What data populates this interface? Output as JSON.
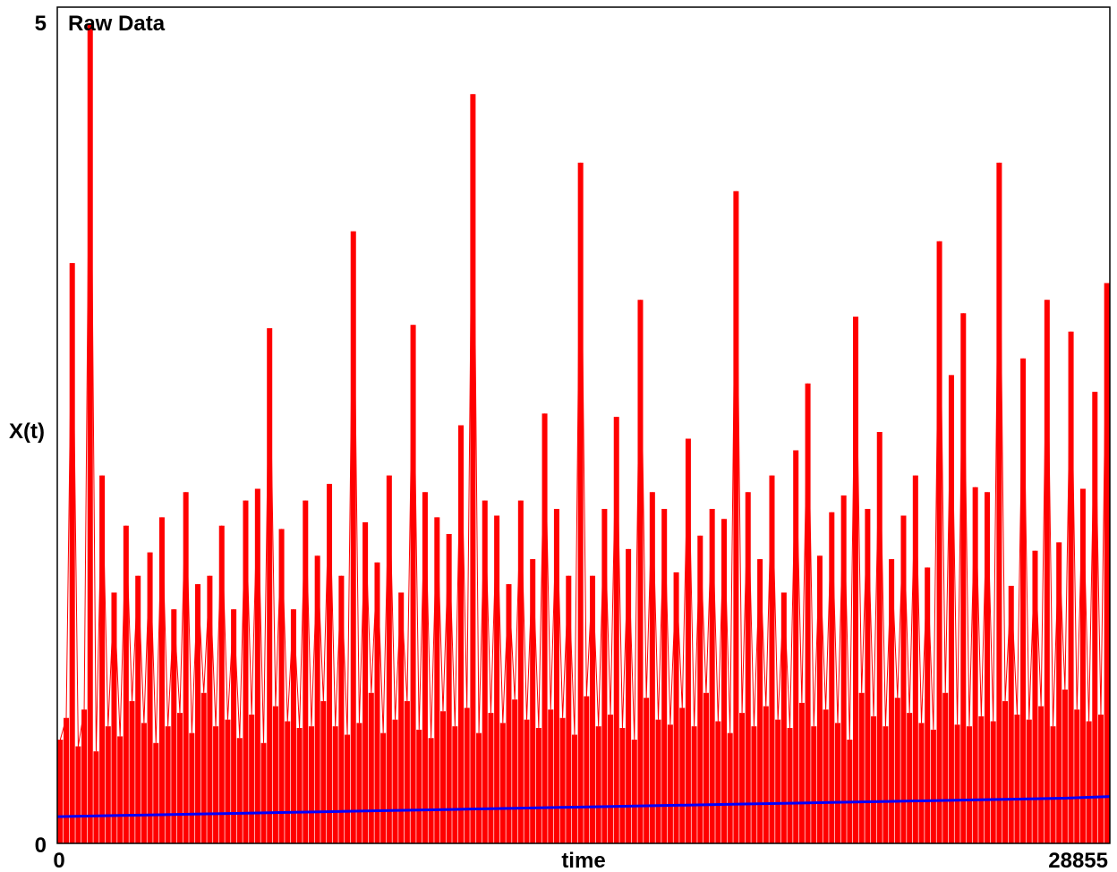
{
  "chart_data": {
    "type": "line",
    "title": "Raw Data",
    "xlabel": "time",
    "ylabel": "X(t)",
    "xlim": [
      0,
      28855
    ],
    "ylim": [
      0,
      5
    ],
    "x_tick_labels": [
      "0",
      "28855"
    ],
    "y_tick_labels": [
      "0",
      "5"
    ],
    "grid": false,
    "legend": "none",
    "colors": {
      "raw": "#ff0000",
      "trend": "#0000ff"
    },
    "series": [
      {
        "values": [
          0.62,
          0.75,
          3.47,
          0.58,
          0.8,
          4.9,
          0.55,
          2.2,
          0.7,
          1.5,
          0.64,
          1.9,
          0.85,
          1.6,
          0.72,
          1.74,
          0.6,
          1.95,
          0.7,
          1.4,
          0.78,
          2.1,
          0.66,
          1.55,
          0.9,
          1.6,
          0.7,
          1.9,
          0.74,
          1.4,
          0.63,
          2.05,
          0.77,
          2.12,
          0.6,
          3.08,
          0.82,
          1.88,
          0.73,
          1.4,
          0.69,
          2.05,
          0.7,
          1.72,
          0.85,
          2.15,
          0.7,
          1.6,
          0.65,
          3.66,
          0.72,
          1.92,
          0.9,
          1.68,
          0.66,
          2.2,
          0.74,
          1.5,
          0.85,
          3.1,
          0.68,
          2.1,
          0.63,
          1.95,
          0.79,
          1.85,
          0.7,
          2.5,
          0.81,
          4.48,
          0.66,
          2.05,
          0.78,
          1.96,
          0.72,
          1.55,
          0.86,
          2.05,
          0.74,
          1.7,
          0.69,
          2.57,
          0.8,
          2.0,
          0.75,
          1.6,
          0.65,
          4.07,
          0.88,
          1.6,
          0.7,
          2.0,
          0.77,
          2.55,
          0.69,
          1.76,
          0.62,
          3.25,
          0.87,
          2.1,
          0.74,
          2.0,
          0.71,
          1.62,
          0.81,
          2.42,
          0.7,
          1.84,
          0.9,
          2.0,
          0.73,
          1.94,
          0.66,
          3.9,
          0.78,
          2.1,
          0.7,
          1.7,
          0.82,
          2.2,
          0.74,
          1.5,
          0.69,
          2.35,
          0.84,
          2.75,
          0.7,
          1.72,
          0.8,
          1.98,
          0.72,
          2.08,
          0.62,
          3.15,
          0.9,
          2.0,
          0.76,
          2.46,
          0.7,
          1.7,
          0.87,
          1.96,
          0.78,
          2.2,
          0.72,
          1.65,
          0.68,
          3.6,
          0.9,
          2.8,
          0.71,
          3.17,
          0.7,
          2.13,
          0.76,
          2.1,
          0.73,
          4.07,
          0.85,
          1.54,
          0.77,
          2.9,
          0.74,
          1.75,
          0.82,
          3.25,
          0.7,
          1.8,
          0.92,
          3.06,
          0.8,
          2.12,
          0.73,
          2.7,
          0.77,
          3.35
        ]
      },
      {
        "values": [
          0.16,
          0.165,
          0.17,
          0.175,
          0.18,
          0.185,
          0.19,
          0.195,
          0.2,
          0.205,
          0.21,
          0.215,
          0.22,
          0.225,
          0.23,
          0.235,
          0.24,
          0.245,
          0.25,
          0.255,
          0.26,
          0.265,
          0.27,
          0.28
        ]
      }
    ]
  }
}
